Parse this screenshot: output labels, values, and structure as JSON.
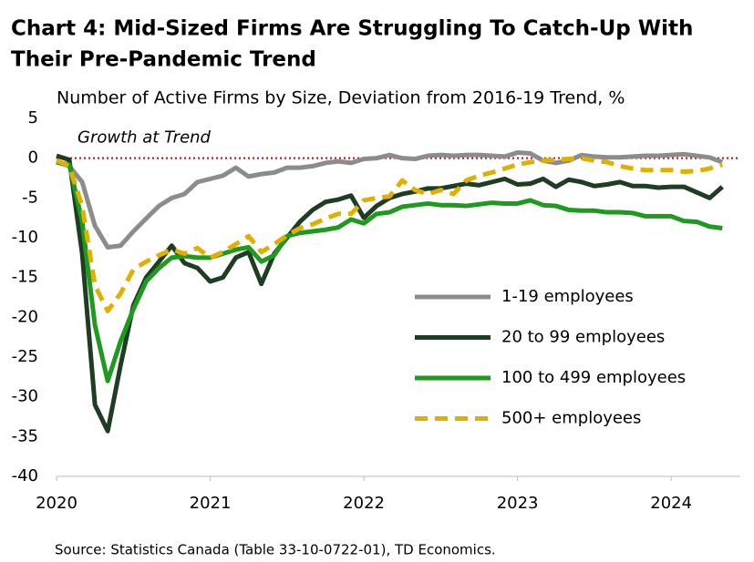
{
  "chart_data": {
    "type": "line",
    "title": [
      "Chart 4: Mid-Sized Firms Are Struggling To Catch-Up With",
      "Their Pre-Pandemic Trend"
    ],
    "subtitle": "Number of Active Firms by Size, Deviation from 2016-19 Trend, %",
    "source": "Source: Statistics Canada (Table 33-10-0722-01), TD Economics.",
    "x": [
      2020,
      2020.083,
      2020.167,
      2020.25,
      2020.333,
      2020.417,
      2020.5,
      2020.583,
      2020.667,
      2020.75,
      2020.833,
      2020.917,
      2021,
      2021.083,
      2021.167,
      2021.25,
      2021.333,
      2021.417,
      2021.5,
      2021.583,
      2021.667,
      2021.75,
      2021.833,
      2021.917,
      2022,
      2022.083,
      2022.167,
      2022.25,
      2022.333,
      2022.417,
      2022.5,
      2022.583,
      2022.667,
      2022.75,
      2022.833,
      2022.917,
      2023,
      2023.083,
      2023.167,
      2023.25,
      2023.333,
      2023.417,
      2023.5,
      2023.583,
      2023.667,
      2023.75,
      2023.833,
      2023.917,
      2024,
      2024.083,
      2024.167,
      2024.25,
      2024.333
    ],
    "series": [
      {
        "name": "1-19 employees",
        "color": "#8c8c8c",
        "dash": false,
        "values": [
          -0.5,
          -1,
          -3,
          -8.5,
          -11.2,
          -11,
          -9.2,
          -7.6,
          -6,
          -5,
          -4.5,
          -3,
          -2.6,
          -2.2,
          -1.2,
          -2.3,
          -2,
          -1.8,
          -1.2,
          -1.2,
          -1,
          -0.6,
          -0.4,
          -0.6,
          -0.1,
          0,
          0.4,
          0,
          -0.1,
          0.3,
          0.4,
          0.3,
          0.4,
          0.4,
          0.3,
          0.2,
          0.7,
          0.6,
          -0.3,
          -0.6,
          -0.3,
          0.4,
          0.2,
          0.1,
          0.1,
          0.2,
          0.3,
          0.3,
          0.4,
          0.5,
          0.3,
          0.1,
          -0.5
        ]
      },
      {
        "name": "20 to 99 employees",
        "color": "#1e3d22",
        "dash": false,
        "values": [
          0.3,
          -0.2,
          -12,
          -31,
          -34.3,
          -26,
          -18.5,
          -15,
          -13,
          -11,
          -13.2,
          -13.8,
          -15.5,
          -15,
          -12.5,
          -11.8,
          -15.8,
          -12,
          -10,
          -8,
          -6.5,
          -5.5,
          -5.2,
          -4.7,
          -7.5,
          -6,
          -5,
          -4.5,
          -4.2,
          -3.8,
          -3.8,
          -3.5,
          -3.2,
          -3.4,
          -3,
          -2.6,
          -3.3,
          -3.2,
          -2.6,
          -3.6,
          -2.7,
          -3,
          -3.5,
          -3.3,
          -3,
          -3.5,
          -3.5,
          -3.7,
          -3.6,
          -3.6,
          -4.3,
          -5,
          -3.6
        ]
      },
      {
        "name": "100 to 499 employees",
        "color": "#1e9a1e",
        "dash": false,
        "values": [
          -0.5,
          -0.8,
          -8,
          -21,
          -28,
          -23,
          -19,
          -15.5,
          -13.8,
          -12.5,
          -12.3,
          -12.5,
          -12.5,
          -12,
          -11.5,
          -11.2,
          -13,
          -12.2,
          -9.8,
          -9.4,
          -9.2,
          -9,
          -8.7,
          -7.7,
          -8.2,
          -7,
          -6.8,
          -6.1,
          -5.9,
          -5.7,
          -5.9,
          -5.9,
          -6,
          -5.8,
          -5.6,
          -5.7,
          -5.7,
          -5.3,
          -5.9,
          -6,
          -6.5,
          -6.6,
          -6.6,
          -6.8,
          -6.8,
          -6.9,
          -7.3,
          -7.3,
          -7.3,
          -7.9,
          -8,
          -8.6,
          -8.8
        ]
      },
      {
        "name": "500+ employees",
        "color": "#e0b000",
        "dash": true,
        "values": [
          -0.3,
          -1,
          -6,
          -16,
          -19.2,
          -17,
          -14,
          -13,
          -12.2,
          -11.5,
          -12,
          -11.3,
          -12.5,
          -11.8,
          -10.8,
          -9.8,
          -11.8,
          -10.8,
          -9.7,
          -8.8,
          -8.3,
          -7.6,
          -7,
          -7,
          -5.3,
          -5,
          -4.8,
          -2.8,
          -4,
          -4.5,
          -4,
          -4.5,
          -2.8,
          -2.2,
          -1.8,
          -1.3,
          -0.8,
          -0.5,
          -0.3,
          -0.2,
          -0.1,
          0,
          -0.3,
          -0.5,
          -1,
          -1.3,
          -1.5,
          -1.5,
          -1.5,
          -1.7,
          -1.6,
          -1.3,
          -0.8
        ]
      }
    ],
    "xlim": [
      2020,
      2024.45
    ],
    "xticks": [
      2020,
      2021,
      2022,
      2023,
      2024
    ],
    "ylim": [
      -40,
      5
    ],
    "yticks": [
      5,
      0,
      -5,
      -10,
      -15,
      -20,
      -25,
      -30,
      -35,
      -40
    ],
    "grid": false,
    "hline": {
      "value": 0,
      "label": "Growth at Trend",
      "color": "#e00000"
    },
    "legend": "lower-right"
  }
}
